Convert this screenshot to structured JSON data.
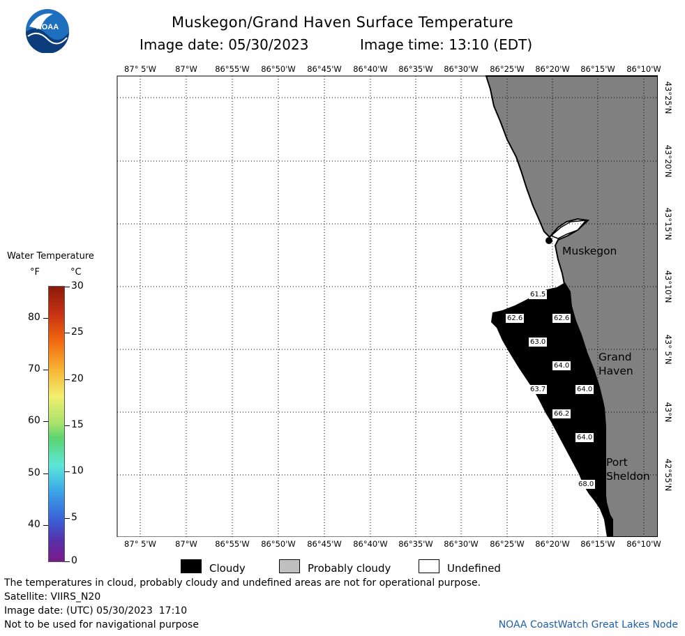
{
  "header": {
    "title": "Muskegon/Grand Haven Surface Temperature",
    "image_date_label": "Image date: 05/30/2023",
    "image_time_label": "Image time: 13:10 (EDT)"
  },
  "logo": {
    "text": "NOAA"
  },
  "map": {
    "lon_ticks": [
      "87° 5'W",
      "87°W",
      "86°55'W",
      "86°50'W",
      "86°45'W",
      "86°40'W",
      "86°35'W",
      "86°30'W",
      "86°25'W",
      "86°20'W",
      "86°15'W",
      "86°10'W"
    ],
    "lat_ticks": [
      "43°25'N",
      "43°20'N",
      "43°15'N",
      "43°10'N",
      "43° 5'N",
      "43°N",
      "42°55'N"
    ],
    "cities": {
      "muskegon": "Muskegon",
      "grand_haven_line1": "Grand",
      "grand_haven_line2": "Haven",
      "port_sheldon_line1": "Port",
      "port_sheldon_line2": "Sheldon"
    },
    "temperature_labels": [
      "61.5",
      "62.6",
      "62.6",
      "63.0",
      "64.0",
      "63.7",
      "64.0",
      "66.2",
      "64.0",
      "68.0"
    ],
    "colors": {
      "land": "#808080",
      "cloudy": "#000000",
      "water_undefined": "#ffffff",
      "grid": "#000000"
    }
  },
  "color_scale": {
    "title": "Water Temperature",
    "unit_f": "°F",
    "unit_c": "°C",
    "f_labels": [
      "80",
      "70",
      "60",
      "50",
      "40"
    ],
    "c_labels": [
      "30",
      "25",
      "20",
      "15",
      "10",
      "5",
      "0"
    ],
    "range_c": [
      0,
      30
    ]
  },
  "legend": {
    "cloudy": "Cloudy",
    "probably_cloudy": "Probably cloudy",
    "undefined": "Undefined",
    "colors": {
      "cloudy": "#000000",
      "probably_cloudy": "#c0c0c0",
      "undefined": "#ffffff"
    }
  },
  "footer": {
    "disclaimer": "The temperatures in cloud, probably cloudy and undefined areas are not for operational purpose.",
    "satellite": "Satellite: VIIRS_N20",
    "utc_date": "Image date: (UTC) 05/30/2023  17:10",
    "navigation": "Not to be used for navigational purpose",
    "credit": "NOAA CoastWatch Great Lakes Node"
  }
}
